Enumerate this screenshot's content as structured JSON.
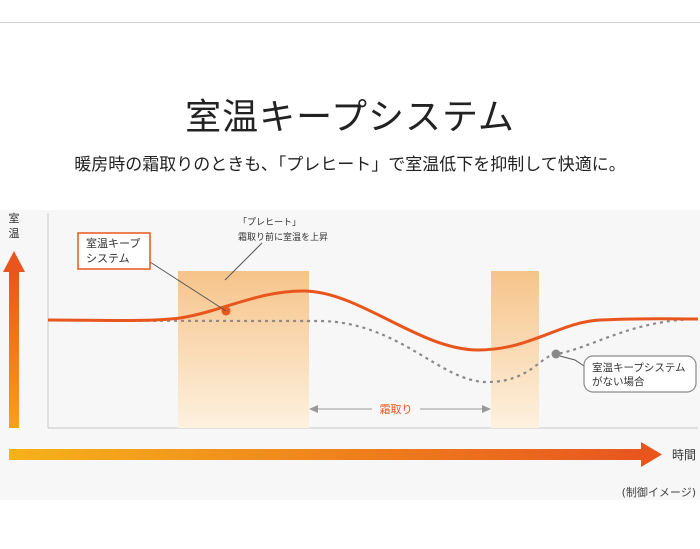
{
  "title": "室温キープシステム",
  "subtitle": "暖房時の霜取りのときも、「プレヒート」で室温低下を抑制して快適に。",
  "y_axis_label": [
    "室",
    "温"
  ],
  "x_axis_label": "時間",
  "callout_keep": [
    "室温キープ",
    "システム"
  ],
  "callout_preheat": [
    "「プレヒート」",
    "霜取り前に室温を上昇"
  ],
  "callout_no_system": [
    "室温キープシステム",
    "がない場合"
  ],
  "defrost_label": "霜取り",
  "footnote": "(制御イメージ)",
  "colors": {
    "accent_orange": "#e8561e",
    "arrow_light": "#f6b21a",
    "band_top": "#f6c48a",
    "band_bottom": "#fdf1df",
    "dotted": "#8a8a8a",
    "callout_red": "#e8561e"
  }
}
